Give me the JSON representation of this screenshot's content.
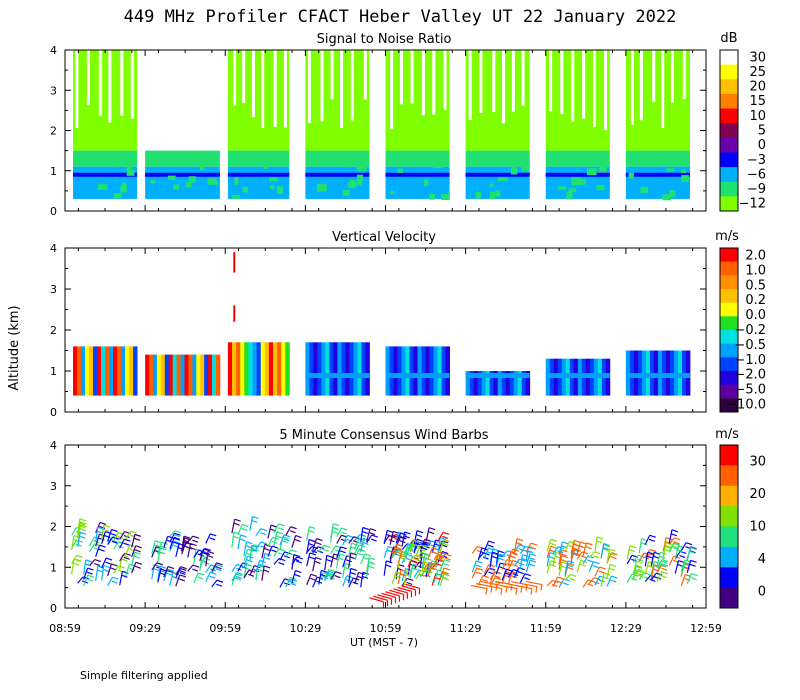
{
  "title": "449 MHz Profiler CFACT Heber Valley UT 22 January 2022",
  "footer_note": "Simple filtering applied",
  "xlabel": "UT  (MST - 7)",
  "ylabel": "Altitude (km)",
  "xticks": [
    "08:59",
    "09:29",
    "09:59",
    "10:29",
    "10:59",
    "11:29",
    "11:59",
    "12:29",
    "12:59"
  ],
  "yticks": [
    "0",
    "1",
    "2",
    "3",
    "4"
  ],
  "chart_data": [
    {
      "type": "heatmap",
      "title": "Signal to Noise Ratio",
      "units": "dB",
      "xlim": [
        "08:59",
        "12:59"
      ],
      "ylim": [
        0,
        4
      ],
      "colorbar_labels": [
        "30",
        "25",
        "20",
        "15",
        "10",
        "5",
        "0",
        "−3",
        "−6",
        "−9",
        "−12"
      ],
      "colorbar_colors": [
        "#ffffff",
        "#ffff00",
        "#ffc000",
        "#ff8000",
        "#ff0000",
        "#7f0055",
        "#6a00aa",
        "#0000ff",
        "#00b0ff",
        "#20e070",
        "#80ff00"
      ],
      "data_blocks": [
        {
          "start": "09:02",
          "end": "09:26",
          "top_km": 4.0
        },
        {
          "start": "09:29",
          "end": "09:57",
          "top_km": 1.5
        },
        {
          "start": "10:00",
          "end": "10:23",
          "top_km": 4.0
        },
        {
          "start": "10:29",
          "end": "10:53",
          "top_km": 4.0
        },
        {
          "start": "10:59",
          "end": "11:23",
          "top_km": 4.0
        },
        {
          "start": "11:29",
          "end": "11:53",
          "top_km": 4.0
        },
        {
          "start": "11:59",
          "end": "12:23",
          "top_km": 4.0
        },
        {
          "start": "12:29",
          "end": "12:53",
          "top_km": 4.0
        }
      ]
    },
    {
      "type": "heatmap",
      "title": "Vertical Velocity",
      "units": "m/s",
      "xlim": [
        "08:59",
        "12:59"
      ],
      "ylim": [
        0,
        4
      ],
      "colorbar_labels": [
        "2.0",
        "1.0",
        "0.5",
        "0.2",
        "0.0",
        "−0.2",
        "−0.5",
        "−1.0",
        "−2.0",
        "−5.0",
        "−10.0"
      ],
      "colorbar_colors": [
        "#ff0000",
        "#ff6000",
        "#ff9000",
        "#ffc000",
        "#ffff00",
        "#20e020",
        "#00e0e0",
        "#00a0ff",
        "#0040ff",
        "#2000e0",
        "#6000a0",
        "#300040"
      ]
    },
    {
      "type": "scatter",
      "title": "5 Minute Consensus Wind Barbs",
      "units": "m/s",
      "xlim": [
        "08:59",
        "12:59"
      ],
      "ylim": [
        0,
        4
      ],
      "colorbar_labels": [
        "30",
        "20",
        "10",
        "4",
        "0"
      ],
      "colorbar_colors": [
        "#ff0000",
        "#ff6000",
        "#ffb000",
        "#80e000",
        "#20e080",
        "#00b0ff",
        "#0000ff",
        "#400080"
      ]
    }
  ]
}
